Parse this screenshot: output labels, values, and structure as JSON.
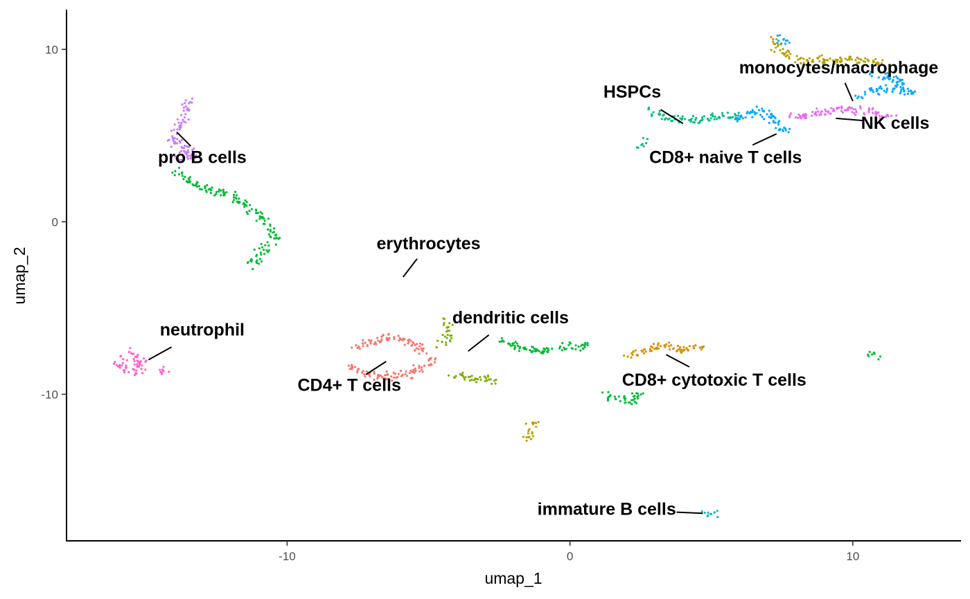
{
  "chart_data": {
    "type": "scatter",
    "title": "",
    "xlabel": "umap_1",
    "ylabel": "umap_2",
    "xlim": [
      -17.8,
      13.8
    ],
    "ylim": [
      -18.5,
      12.3
    ],
    "x_ticks": [
      {
        "value": -10,
        "label": "-10"
      },
      {
        "value": 0,
        "label": "0"
      },
      {
        "value": 10,
        "label": "10"
      }
    ],
    "y_ticks": [
      {
        "value": 10,
        "label": "10"
      },
      {
        "value": 0,
        "label": "0"
      },
      {
        "value": -10,
        "label": "-10"
      }
    ],
    "grid": false,
    "legend": "none",
    "clusters": [
      {
        "name": "CD4+ T cells",
        "color": "#F8766D",
        "segments": [
          [
            [
              -7.6,
              -7.3
            ],
            [
              -6.5,
              -6.7
            ],
            [
              -5.6,
              -7.0
            ],
            [
              -4.8,
              -8.1
            ],
            [
              -5.6,
              -8.8
            ],
            [
              -6.8,
              -9.0
            ],
            [
              -7.8,
              -8.4
            ]
          ]
        ],
        "anchor": [
          -6.5,
          -8.1
        ],
        "label": [
          -7.8,
          -9.8
        ]
      },
      {
        "name": "monocytes/macrophage",
        "color": "#B79F00",
        "segments": [
          [
            [
              7.2,
              10.6
            ],
            [
              7.6,
              9.8
            ],
            [
              8.2,
              9.3
            ],
            [
              9.2,
              9.4
            ],
            [
              10.2,
              9.4
            ],
            [
              11.0,
              9.2
            ]
          ],
          [
            [
              -1.6,
              -12.6
            ],
            [
              -1.4,
              -12.2
            ],
            [
              -1.2,
              -11.6
            ]
          ]
        ],
        "anchor": [
          10.0,
          7.0
        ],
        "label": [
          9.5,
          8.6
        ]
      },
      {
        "name": "dendritic cells",
        "color": "#7CAE00",
        "segments": [
          [
            [
              -4.4,
              -5.6
            ],
            [
              -4.3,
              -6.2
            ],
            [
              -4.5,
              -7.2
            ]
          ],
          [
            [
              -4.2,
              -8.8
            ],
            [
              -3.5,
              -9.1
            ],
            [
              -2.7,
              -9.2
            ]
          ]
        ],
        "anchor": [
          -3.6,
          -7.5
        ],
        "label": [
          -2.1,
          -5.9
        ]
      },
      {
        "name": "erythrocytes",
        "color": "#00BA38",
        "segments": [
          [
            [
              -14.0,
              3.1
            ],
            [
              -13.5,
              2.3
            ],
            [
              -12.7,
              1.8
            ],
            [
              -12.0,
              1.6
            ],
            [
              -11.0,
              0.4
            ],
            [
              -10.4,
              -0.8
            ],
            [
              -10.9,
              -1.9
            ],
            [
              -11.4,
              -2.6
            ]
          ],
          [
            [
              -2.5,
              -6.8
            ],
            [
              -1.8,
              -7.3
            ],
            [
              -1.0,
              -7.5
            ],
            [
              -0.3,
              -7.3
            ],
            [
              0.6,
              -7.2
            ]
          ],
          [
            [
              1.3,
              -10.0
            ],
            [
              1.6,
              -10.2
            ],
            [
              2.2,
              -10.4
            ],
            [
              2.4,
              -10.1
            ],
            [
              2.6,
              -9.9
            ]
          ],
          [
            [
              10.6,
              -7.6
            ],
            [
              10.9,
              -7.8
            ]
          ]
        ],
        "anchor": [
          -5.9,
          -3.2
        ],
        "label": [
          -5.0,
          -1.6
        ]
      },
      {
        "name": "HSPCs",
        "color": "#00BF7D",
        "segments": [
          [
            [
              2.8,
              6.4
            ],
            [
              3.5,
              6.0
            ],
            [
              4.3,
              5.9
            ],
            [
              5.2,
              6.1
            ],
            [
              6.0,
              6.1
            ]
          ],
          [
            [
              2.7,
              4.8
            ],
            [
              2.5,
              4.4
            ]
          ]
        ],
        "anchor": [
          4.0,
          5.7
        ],
        "label": [
          2.2,
          7.2
        ]
      },
      {
        "name": "immature B cells",
        "color": "#00BFC4",
        "segments": [
          [
            [
              4.8,
              -17.0
            ],
            [
              5.2,
              -16.7
            ]
          ]
        ],
        "anchor": [
          4.7,
          -16.9
        ],
        "label": [
          1.3,
          -17.0
        ]
      },
      {
        "name": "CD8+ naive T cells",
        "color": "#00A9FF",
        "segments": [
          [
            [
              5.9,
              5.9
            ],
            [
              6.6,
              6.6
            ],
            [
              7.0,
              6.2
            ],
            [
              7.4,
              5.4
            ],
            [
              7.8,
              5.3
            ]
          ],
          [
            [
              10.2,
              7.3
            ],
            [
              11.2,
              7.8
            ],
            [
              12.0,
              7.5
            ],
            [
              11.6,
              8.3
            ],
            [
              10.7,
              8.6
            ]
          ],
          [
            [
              7.3,
              10.8
            ],
            [
              7.6,
              10.3
            ]
          ]
        ],
        "anchor": [
          7.3,
          5.1
        ],
        "label": [
          5.5,
          3.4
        ]
      },
      {
        "name": "pro B cells",
        "color": "#C77CFF",
        "segments": [
          [
            [
              -13.4,
              7.2
            ],
            [
              -13.7,
              5.8
            ],
            [
              -14.1,
              5.0
            ],
            [
              -13.6,
              4.3
            ],
            [
              -13.2,
              3.9
            ],
            [
              -14.0,
              3.7
            ]
          ]
        ],
        "anchor": [
          -13.9,
          5.2
        ],
        "label": [
          -13.0,
          3.4
        ]
      },
      {
        "name": "neutrophil",
        "color": "#FF61CC",
        "segments": [
          [
            [
              -15.8,
              -7.7
            ],
            [
              -15.9,
              -8.3
            ],
            [
              -15.4,
              -8.8
            ],
            [
              -15.1,
              -8.2
            ],
            [
              -15.7,
              -7.3
            ]
          ],
          [
            [
              -14.5,
              -8.7
            ],
            [
              -14.2,
              -8.7
            ]
          ]
        ],
        "anchor": [
          -14.9,
          -8.0
        ],
        "label": [
          -13.0,
          -6.6
        ]
      },
      {
        "name": "NK cells",
        "color": "#E76BF3",
        "segments": [
          [
            [
              7.6,
              6.1
            ],
            [
              8.4,
              6.2
            ],
            [
              9.2,
              6.4
            ],
            [
              9.8,
              6.6
            ],
            [
              10.8,
              6.3
            ],
            [
              11.3,
              6.1
            ]
          ]
        ],
        "anchor": [
          9.4,
          6.0
        ],
        "label": [
          11.5,
          5.4
        ]
      },
      {
        "name": "CD8+ cytotoxic T cells",
        "color": "#D89000",
        "segments": [
          [
            [
              2.0,
              -7.8
            ],
            [
              2.6,
              -7.5
            ],
            [
              3.3,
              -7.2
            ],
            [
              4.0,
              -7.4
            ],
            [
              4.7,
              -7.2
            ]
          ]
        ],
        "anchor": [
          3.4,
          -7.7
        ],
        "label": [
          5.1,
          -9.5
        ]
      }
    ]
  }
}
